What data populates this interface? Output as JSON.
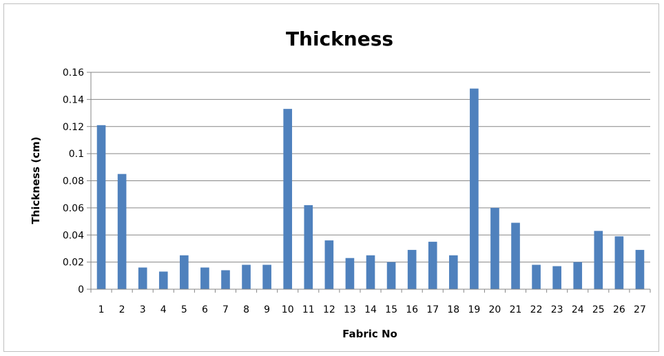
{
  "chart_data": {
    "type": "bar",
    "title": "Thickness",
    "xlabel": "Fabric No",
    "ylabel": "Thickness (cm)",
    "categories": [
      "1",
      "2",
      "3",
      "4",
      "5",
      "6",
      "7",
      "8",
      "9",
      "10",
      "11",
      "12",
      "13",
      "14",
      "15",
      "16",
      "17",
      "18",
      "19",
      "20",
      "21",
      "22",
      "23",
      "24",
      "25",
      "26",
      "27"
    ],
    "values": [
      0.121,
      0.085,
      0.016,
      0.013,
      0.025,
      0.016,
      0.014,
      0.018,
      0.018,
      0.133,
      0.062,
      0.036,
      0.023,
      0.025,
      0.02,
      0.029,
      0.035,
      0.025,
      0.148,
      0.06,
      0.049,
      0.018,
      0.017,
      0.02,
      0.043,
      0.039,
      0.029
    ],
    "ylim": [
      0,
      0.16
    ],
    "yticks": [
      "0",
      "0.02",
      "0.04",
      "0.06",
      "0.08",
      "0.1",
      "0.12",
      "0.14",
      "0.16"
    ],
    "grid": true,
    "legend": "none",
    "bar_color": "#4F81BD",
    "grid_color": "#868686"
  }
}
